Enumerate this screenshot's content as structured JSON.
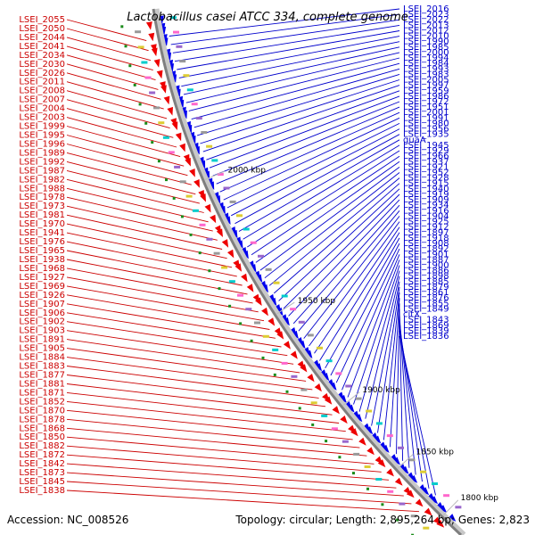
{
  "title": "Lactobacillus casei ATCC 334, complete genome",
  "accession": "Accession: NC_008526",
  "topology": "Topology: circular; Length: 2,895,264 bp; Genes: 2,823",
  "colors": {
    "left_labels": "#cc0000",
    "right_labels": "#0000cc",
    "backbone": "#8a8a8a",
    "gene_forward": "#0000ee",
    "gene_reverse": "#ee0000"
  },
  "kbp_labels": [
    "2000 kbp",
    "1950 kbp",
    "1900 kbp",
    "1850 kbp",
    "1800 kbp"
  ],
  "left_genes": [
    "LSEI_2055",
    "LSEI_2050",
    "LSEI_2044",
    "LSEI_2041",
    "LSEI_2034",
    "LSEI_2030",
    "LSEI_2026",
    "LSEI_2011",
    "LSEI_2008",
    "LSEI_2007",
    "LSEI_2004",
    "LSEI_2003",
    "LSEI_1999",
    "LSEI_1995",
    "LSEI_1996",
    "LSEI_1989",
    "LSEI_1992",
    "LSEI_1987",
    "LSEI_1982",
    "LSEI_1988",
    "LSEI_1978",
    "LSEI_1973",
    "LSEI_1981",
    "LSEI_1970",
    "LSEI_1941",
    "LSEI_1976",
    "LSEI_1965",
    "LSEI_1938",
    "LSEI_1968",
    "LSEI_1927",
    "LSEI_1969",
    "LSEI_1926",
    "LSEI_1907",
    "LSEI_1906",
    "LSEI_1902",
    "LSEI_1903",
    "LSEI_1891",
    "LSEI_1905",
    "LSEI_1884",
    "LSEI_1883",
    "LSEI_1877",
    "LSEI_1881",
    "LSEI_1871",
    "LSEI_1852",
    "LSEI_1870",
    "LSEI_1878",
    "LSEI_1868",
    "LSEI_1850",
    "LSEI_1882",
    "LSEI_1872",
    "LSEI_1842",
    "LSEI_1873",
    "LSEI_1845",
    "LSEI_1838"
  ],
  "right_genes": [
    "LSEI_2016",
    "LSEI_2023",
    "LSEI_2022",
    "LSEI_2013",
    "LSEI_2012",
    "LSEI_2010",
    "LSEI_1990",
    "LSEI_1985",
    "LSEI_2000",
    "LSEI_1994",
    "LSEI_1984",
    "LSEI_1993",
    "LSEI_1983",
    "LSEI_2005",
    "LSEI_1997",
    "LSEI_1959",
    "LSEI_1986",
    "LSEI_1972",
    "LSEI_1951",
    "LSEI_2001",
    "LSEI_1991",
    "LSEI_1980",
    "LSEI_1956",
    "LSEI_1935",
    "guaA",
    "LSEI_1945",
    "LSEI_1929",
    "LSEI_1966",
    "LSEI_1937",
    "LSEI_1921",
    "LSEI_1952",
    "LSEI_1928",
    "LSEI_1915",
    "LSEI_1940",
    "LSEI_1919",
    "LSEI_1909",
    "LSEI_1934",
    "LSEI_1916",
    "LSEI_1904",
    "LSEI_1925",
    "LSEI_1912",
    "LSEI_1897",
    "LSEI_1918",
    "LSEI_1908",
    "LSEI_1892",
    "LSEI_1901",
    "LSEI_1887",
    "LSEI_1900",
    "LSEI_1886",
    "LSEI_1898",
    "LSEI_1885",
    "LSEI_1879",
    "LSEI_1861",
    "LSEI_1876",
    "LSEI_1855",
    "LSEI_1849",
    "citX",
    "LSEI_1843",
    "LSEI_1869",
    "LSEI_1839",
    "LSEI_1836"
  ]
}
